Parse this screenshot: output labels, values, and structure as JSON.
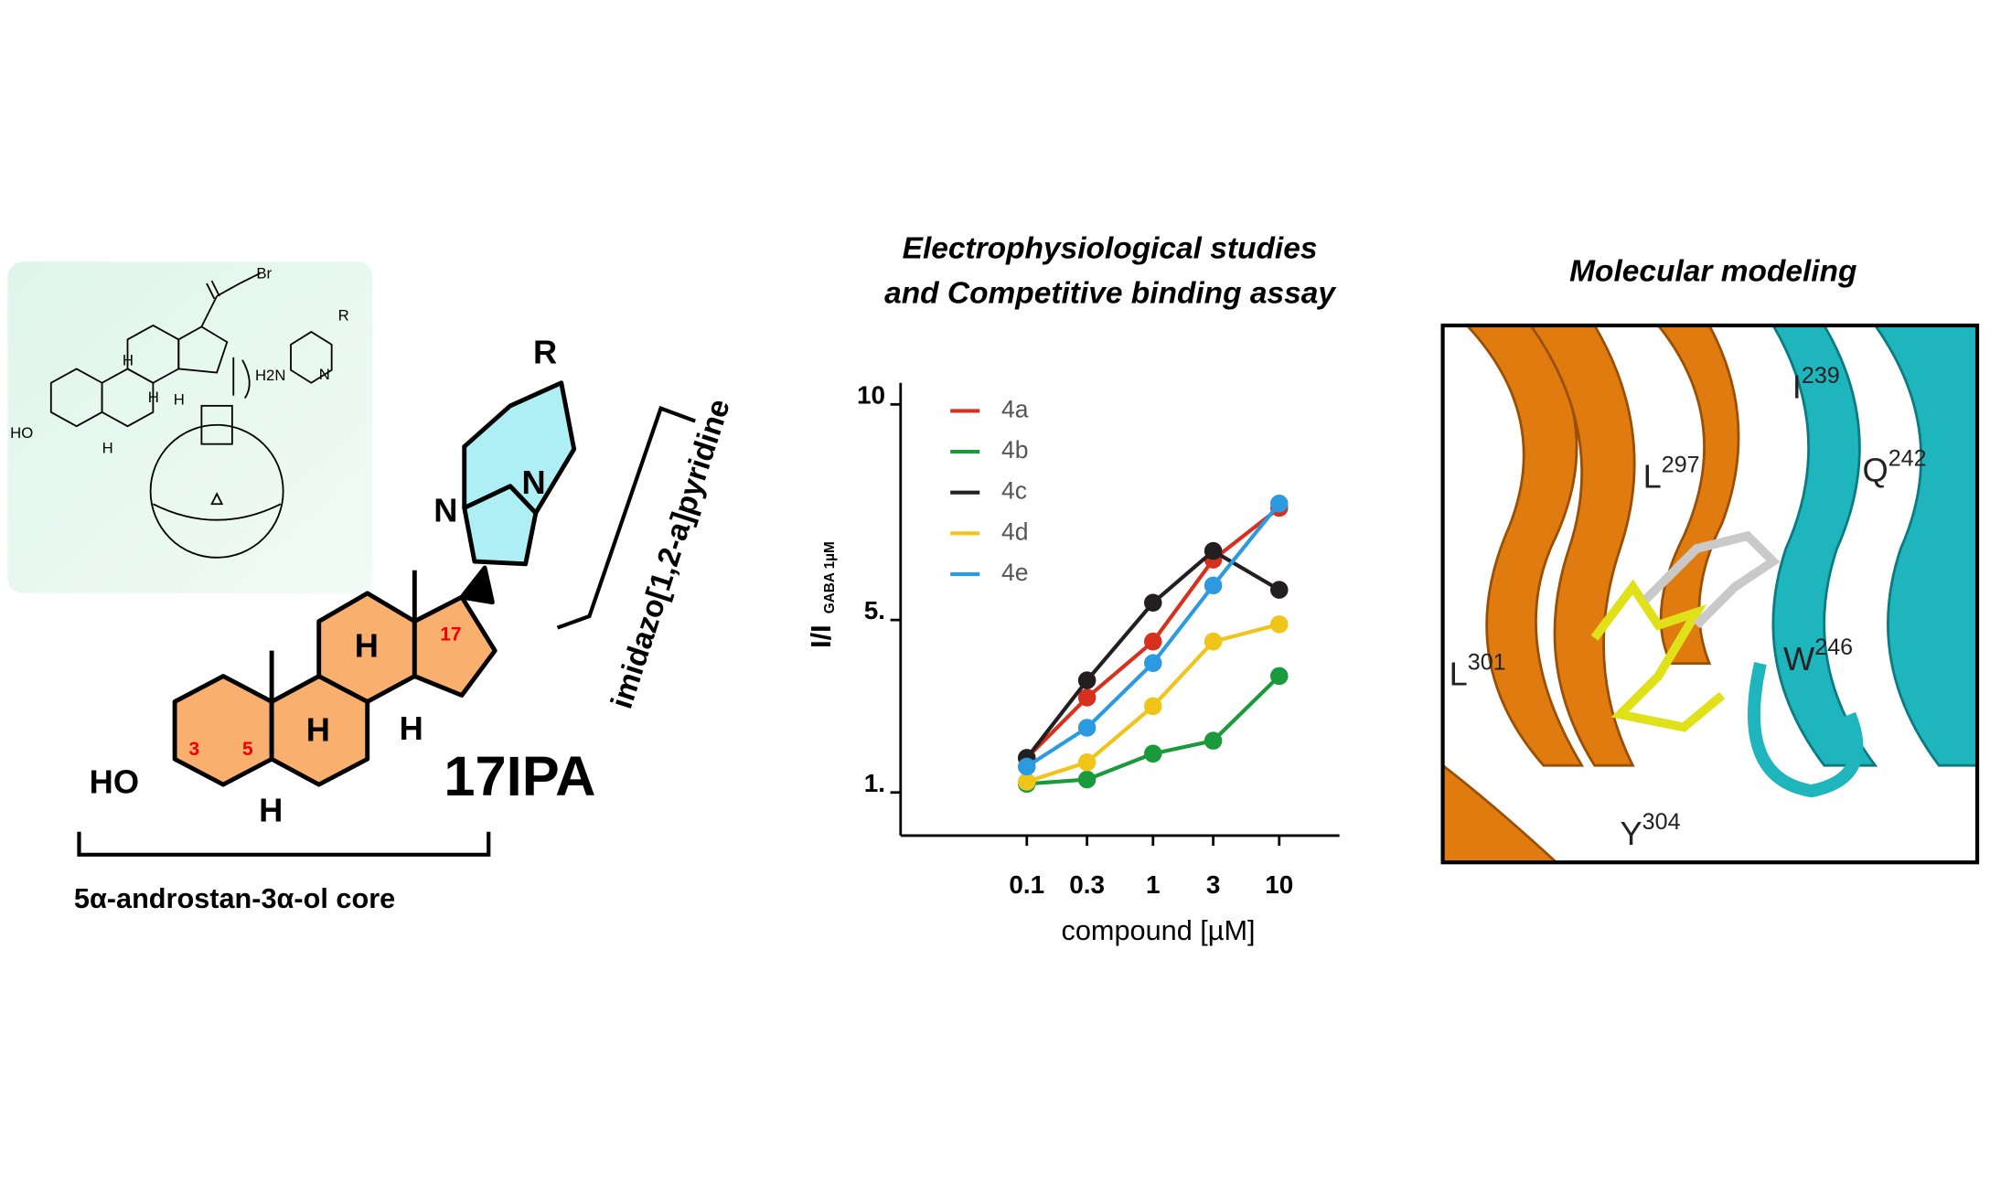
{
  "synthesis": {
    "bromo": "Br",
    "amine": "H2N",
    "ring_n": "N",
    "substituent": "R",
    "hydroxyl": "HO",
    "hydrogens": [
      "H",
      "H",
      "H",
      "H"
    ]
  },
  "structure": {
    "name": "17IPA",
    "core_label": "5α-androstan-3α-ol core",
    "fragment_label": "imidazo[1,2-a]pyridine",
    "hydroxyl": "HO",
    "hydrogens": [
      "H",
      "H",
      "H",
      "H"
    ],
    "nitrogens": [
      "N",
      "N"
    ],
    "substituent": "R",
    "positions": [
      "3",
      "5",
      "17"
    ]
  },
  "chart_data": {
    "type": "line",
    "title": "Electrophysiological studies",
    "subtitle": "and Competitive binding assay",
    "x_label": "compound [µM]",
    "y_label": "I/I",
    "y_label_subscript": "GABA 1µM",
    "x": [
      0.1,
      0.3,
      1,
      3,
      10
    ],
    "xscale": "log",
    "xlim": [
      0.01,
      30
    ],
    "xticks": [
      0.1,
      0.3,
      1,
      3,
      10
    ],
    "ylim": [
      0,
      10.5
    ],
    "yticks": [
      {
        "value": 1,
        "label": "1."
      },
      {
        "value": 5,
        "label": "5."
      },
      10
    ],
    "legend": "upper left",
    "series": [
      {
        "name": "4a",
        "color": "#d7301f",
        "values": [
          1.8,
          3.2,
          4.5,
          6.4,
          7.6
        ]
      },
      {
        "name": "4b",
        "color": "#1a9a3c",
        "values": [
          1.2,
          1.3,
          1.9,
          2.2,
          3.7
        ]
      },
      {
        "name": "4c",
        "color": "#231f20",
        "values": [
          1.8,
          3.6,
          5.4,
          6.6,
          5.7
        ]
      },
      {
        "name": "4d",
        "color": "#f0c419",
        "values": [
          1.25,
          1.7,
          3.0,
          4.5,
          4.9
        ]
      },
      {
        "name": "4e",
        "color": "#2b9ae0",
        "values": [
          1.6,
          2.5,
          4.0,
          5.8,
          7.7
        ]
      }
    ]
  },
  "modeling": {
    "title": "Molecular modeling",
    "residues": [
      {
        "name": "I",
        "number": "239"
      },
      {
        "name": "Q",
        "number": "242"
      },
      {
        "name": "L",
        "number": "297"
      },
      {
        "name": "W",
        "number": "246"
      },
      {
        "name": "L",
        "number": "301"
      },
      {
        "name": "Y",
        "number": "304"
      }
    ]
  }
}
